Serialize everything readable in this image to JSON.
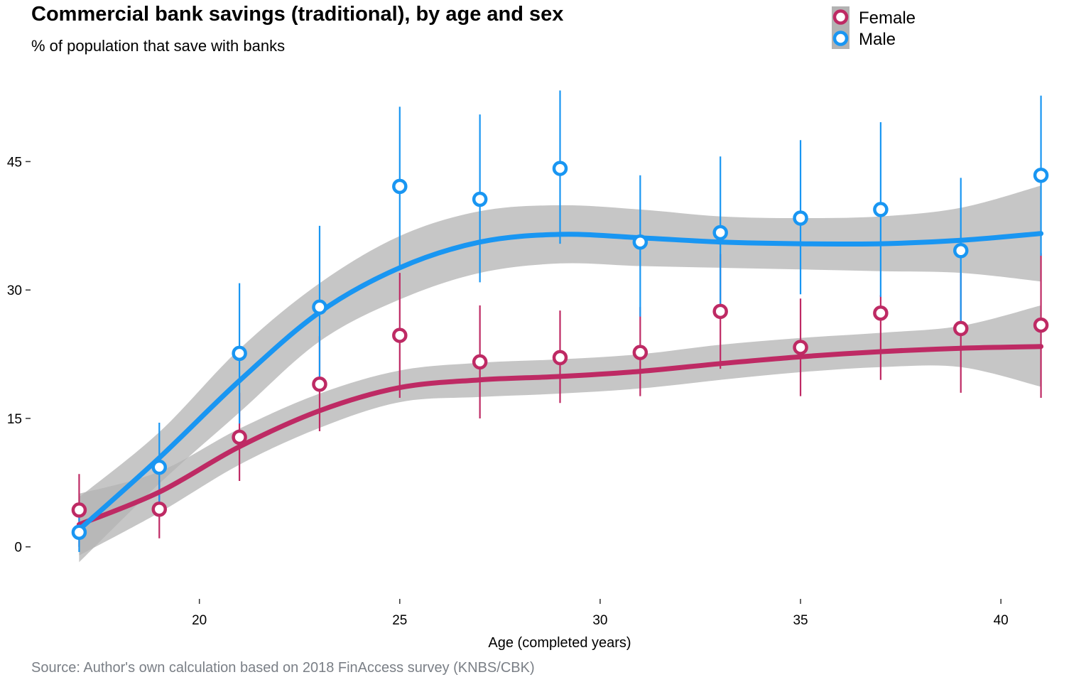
{
  "chart_data": {
    "type": "scatter",
    "title": "Commercial bank savings (traditional), by age and sex",
    "subtitle": "% of population that save with banks",
    "caption": "Source: Author's own calculation based on 2018 FinAccess survey (KNBS/CBK)",
    "xlabel": "Age (completed years)",
    "ylabel": "",
    "xlim": [
      16.0,
      42.0
    ],
    "ylim": [
      -5.0,
      53.5
    ],
    "xticks": [
      20,
      25,
      30,
      35,
      40
    ],
    "yticks": [
      0,
      15,
      30,
      45
    ],
    "grid": false,
    "legend_position": "top-right",
    "smoother": "loess fit with shaded confidence band",
    "band_color": "#b3b3b3",
    "series": [
      {
        "name": "Female",
        "color": "#be2a64",
        "x": [
          17,
          19,
          21,
          23,
          25,
          27,
          29,
          31,
          33,
          35,
          37,
          39,
          41
        ],
        "y": [
          4.3,
          4.4,
          12.8,
          19.0,
          24.7,
          21.6,
          22.1,
          22.7,
          27.5,
          23.3,
          27.3,
          25.5,
          25.9
        ],
        "y_low": [
          0.0,
          1.0,
          7.7,
          13.5,
          17.4,
          15.0,
          16.8,
          17.6,
          20.8,
          17.6,
          19.5,
          18.0,
          17.4
        ],
        "y_high": [
          8.5,
          7.8,
          18.0,
          24.6,
          32.0,
          28.2,
          27.6,
          28.0,
          34.2,
          29.0,
          29.4,
          32.0,
          34.3
        ],
        "fit": [
          2.6,
          6.4,
          11.7,
          15.9,
          18.6,
          19.5,
          19.9,
          20.5,
          21.4,
          22.2,
          22.8,
          23.2,
          23.4
        ],
        "fit_low": [
          -1.0,
          4.0,
          9.6,
          13.9,
          16.9,
          17.5,
          17.9,
          18.5,
          19.5,
          20.4,
          21.0,
          21.0,
          18.7
        ],
        "fit_high": [
          6.2,
          8.8,
          13.8,
          17.9,
          20.6,
          21.5,
          21.9,
          22.5,
          23.6,
          24.4,
          25.0,
          25.8,
          28.2
        ]
      },
      {
        "name": "Male",
        "color": "#1996f2",
        "x": [
          17,
          19,
          21,
          23,
          25,
          27,
          29,
          31,
          33,
          35,
          37,
          39,
          41
        ],
        "y": [
          1.7,
          9.3,
          22.6,
          28.0,
          42.1,
          40.6,
          44.2,
          35.6,
          36.7,
          38.4,
          39.4,
          34.6,
          43.4
        ],
        "y_low": [
          -0.6,
          5.2,
          14.4,
          19.4,
          32.6,
          30.9,
          35.4,
          26.9,
          28.0,
          29.5,
          29.2,
          26.0,
          34.0
        ],
        "y_high": [
          5.0,
          14.5,
          30.8,
          37.5,
          51.4,
          50.5,
          53.3,
          43.4,
          45.6,
          47.5,
          49.6,
          43.1,
          52.7
        ],
        "fit": [
          2.0,
          10.4,
          19.4,
          27.4,
          32.6,
          35.6,
          36.5,
          36.1,
          35.6,
          35.4,
          35.4,
          35.8,
          36.6
        ],
        "fit_low": [
          -1.8,
          7.4,
          15.7,
          24.0,
          28.9,
          32.0,
          33.1,
          32.8,
          32.6,
          32.4,
          32.2,
          32.0,
          31.0
        ],
        "fit_high": [
          5.8,
          13.4,
          23.1,
          30.8,
          36.3,
          39.2,
          39.9,
          39.4,
          38.6,
          38.4,
          38.6,
          39.6,
          42.2
        ]
      }
    ]
  }
}
